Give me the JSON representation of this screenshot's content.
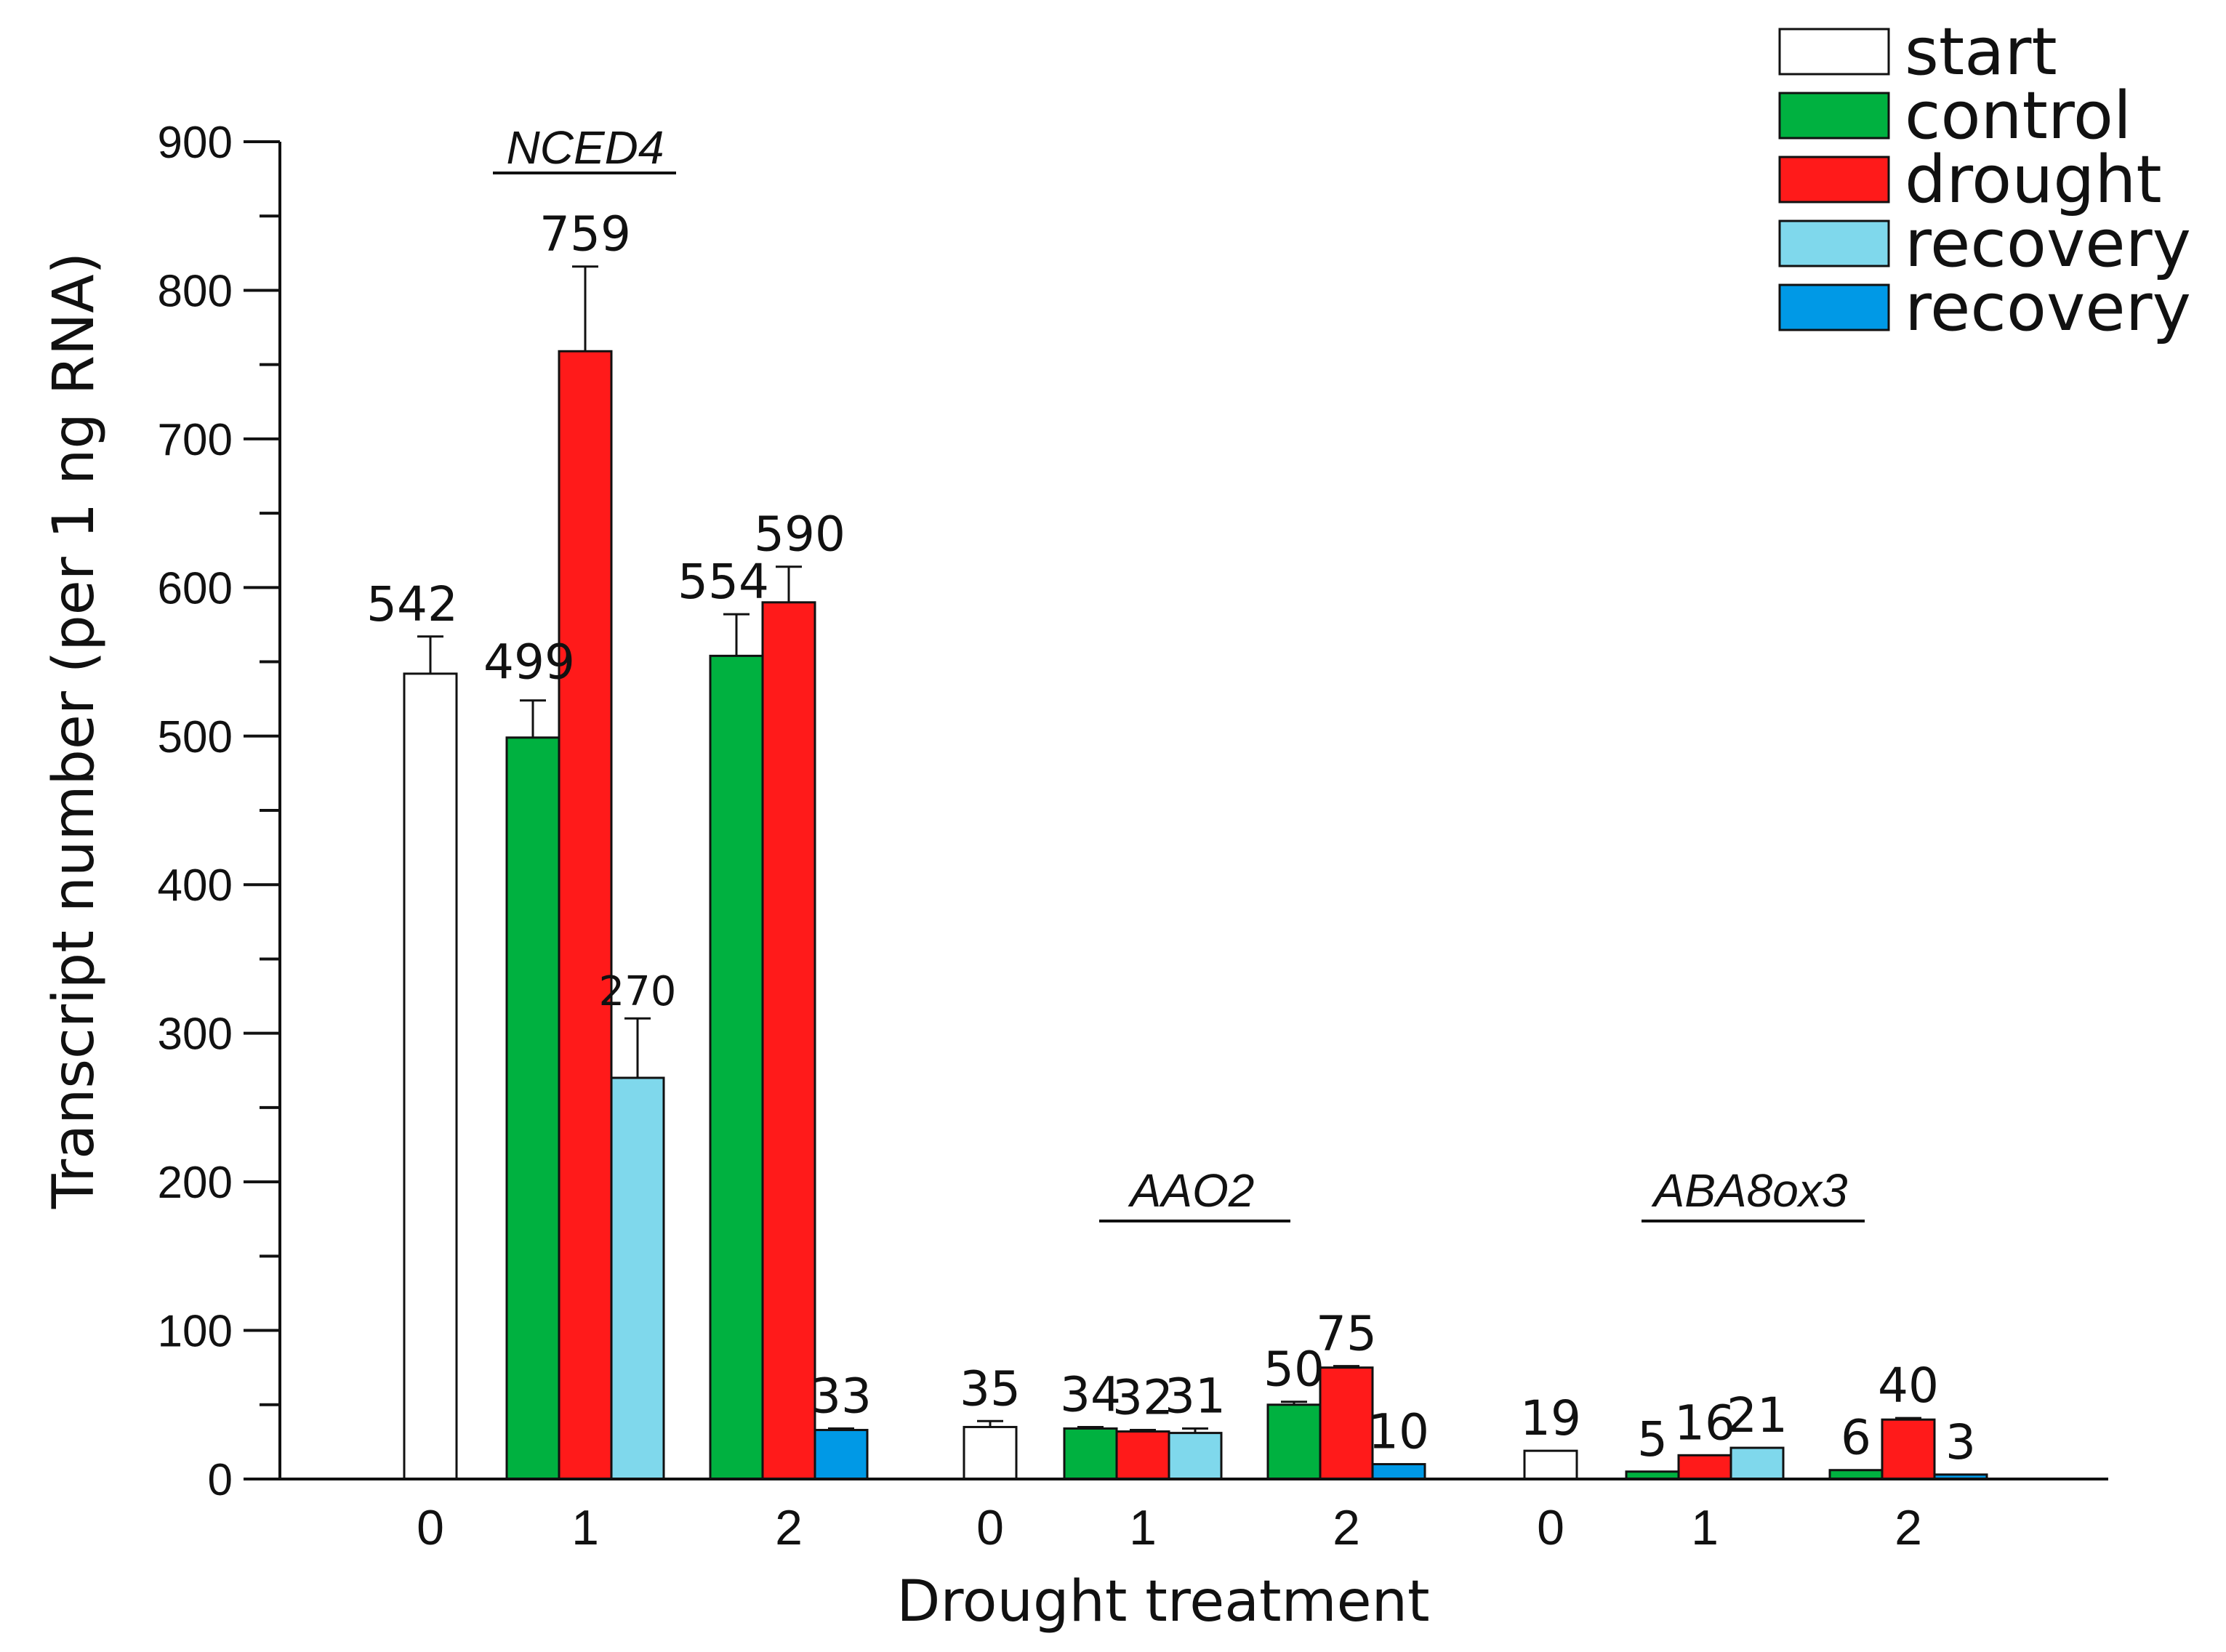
{
  "chart_data": {
    "type": "bar",
    "title": "",
    "xlabel": "Drought treatment",
    "ylabel": "Transcript number (per 1 ng RNA)",
    "ylim": [
      0,
      900
    ],
    "yticks": [
      0,
      100,
      200,
      300,
      400,
      500,
      600,
      700,
      800,
      900
    ],
    "grid": false,
    "legend_position": "top-right",
    "series_info": [
      {
        "key": "start",
        "name": "start",
        "color": "#ffffff"
      },
      {
        "key": "control",
        "name": "control",
        "color": "#00b140"
      },
      {
        "key": "drought",
        "name": "drought",
        "color": "#ff1a1a"
      },
      {
        "key": "recovery_light",
        "name": "recovery",
        "color": "#7fd8ec"
      },
      {
        "key": "recovery_blue",
        "name": "recovery",
        "color": "#0099e6"
      }
    ],
    "groups": [
      {
        "gene": "NCED4",
        "days": [
          {
            "day": "0",
            "bars": [
              {
                "series": "start",
                "value": 542,
                "error": 25,
                "label": "542"
              }
            ]
          },
          {
            "day": "1",
            "bars": [
              {
                "series": "control",
                "value": 499,
                "error": 25,
                "label": "499"
              },
              {
                "series": "drought",
                "value": 759,
                "error": 57,
                "label": "759"
              },
              {
                "series": "recovery_light",
                "value": 270,
                "error": 40,
                "label": "270"
              }
            ]
          },
          {
            "day": "2",
            "bars": [
              {
                "series": "control",
                "value": 554,
                "error": 28,
                "label": "554"
              },
              {
                "series": "drought",
                "value": 590,
                "error": 24,
                "label": "590"
              },
              {
                "series": "recovery_blue",
                "value": 33,
                "error": 1,
                "label": "33"
              }
            ]
          }
        ]
      },
      {
        "gene": "AAO2",
        "days": [
          {
            "day": "0",
            "bars": [
              {
                "series": "start",
                "value": 35,
                "error": 4,
                "label": "35"
              }
            ]
          },
          {
            "day": "1",
            "bars": [
              {
                "series": "control",
                "value": 34,
                "error": 1,
                "label": "34"
              },
              {
                "series": "drought",
                "value": 32,
                "error": 1,
                "label": "32"
              },
              {
                "series": "recovery_light",
                "value": 31,
                "error": 3,
                "label": "31"
              }
            ]
          },
          {
            "day": "2",
            "bars": [
              {
                "series": "control",
                "value": 50,
                "error": 2,
                "label": "50"
              },
              {
                "series": "drought",
                "value": 75,
                "error": 1,
                "label": "75"
              },
              {
                "series": "recovery_blue",
                "value": 10,
                "error": 0,
                "label": "10"
              }
            ]
          }
        ]
      },
      {
        "gene": "ABA8ox3",
        "days": [
          {
            "day": "0",
            "bars": [
              {
                "series": "start",
                "value": 19,
                "error": 0,
                "label": "19"
              }
            ]
          },
          {
            "day": "1",
            "bars": [
              {
                "series": "control",
                "value": 5,
                "error": 0,
                "label": "5"
              },
              {
                "series": "drought",
                "value": 16,
                "error": 0,
                "label": "16"
              },
              {
                "series": "recovery_light",
                "value": 21,
                "error": 0,
                "label": "21"
              }
            ]
          },
          {
            "day": "2",
            "bars": [
              {
                "series": "control",
                "value": 6,
                "error": 0,
                "label": "6"
              },
              {
                "series": "drought",
                "value": 40,
                "error": 1,
                "label": "40"
              },
              {
                "series": "recovery_blue",
                "value": 3,
                "error": 0,
                "label": "3"
              }
            ]
          }
        ]
      }
    ]
  }
}
